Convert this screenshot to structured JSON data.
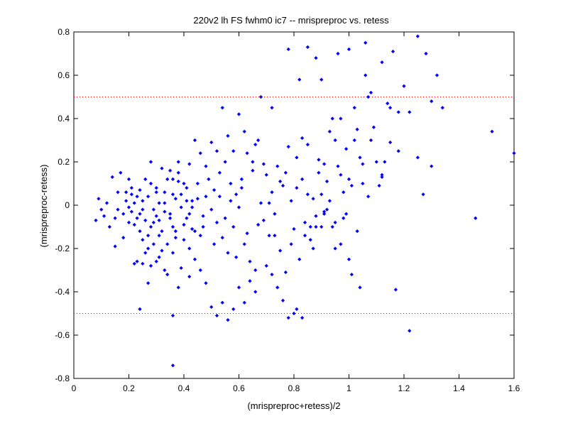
{
  "chart_data": {
    "type": "scatter",
    "title": "220v2 lh FS fwhm0 ic7 -- mrispreproc vs. retess",
    "xlabel": "(mrispreproc+retess)/2",
    "ylabel": "(mrispreproc-retess)",
    "xlim": [
      0,
      1.6
    ],
    "ylim": [
      -0.8,
      0.8
    ],
    "xticks": [
      "0",
      "0.2",
      "0.4",
      "0.6",
      "0.8",
      "1",
      "1.2",
      "1.4",
      "1.6"
    ],
    "yticks": [
      "-0.8",
      "-0.6",
      "-0.4",
      "-0.2",
      "0",
      "0.2",
      "0.4",
      "0.6",
      "0.8"
    ],
    "grid": false,
    "reference_lines": [
      {
        "y": 0.5,
        "style": "dotted",
        "color": "#ff0000"
      },
      {
        "y": -0.5,
        "style": "dotted",
        "color": "#ff0000"
      }
    ],
    "marker_color": "#0000ff",
    "series": [
      {
        "points": [
          [
            0.08,
            -0.07
          ],
          [
            0.09,
            0.03
          ],
          [
            0.1,
            -0.02
          ],
          [
            0.11,
            -0.05
          ],
          [
            0.12,
            0.01
          ],
          [
            0.13,
            -0.1
          ],
          [
            0.14,
            0.13
          ],
          [
            0.15,
            -0.06
          ],
          [
            0.16,
            0.06
          ],
          [
            0.16,
            -0.02
          ],
          [
            0.17,
            0.15
          ],
          [
            0.18,
            -0.04
          ],
          [
            0.19,
            0.02
          ],
          [
            0.2,
            -0.01
          ],
          [
            0.21,
            0.05
          ],
          [
            0.22,
            -0.09
          ],
          [
            0.23,
            0.04
          ],
          [
            0.24,
            -0.12
          ],
          [
            0.15,
            -0.19
          ],
          [
            0.18,
            -0.15
          ],
          [
            0.2,
            -0.08
          ],
          [
            0.19,
            0.06
          ],
          [
            0.22,
            0.01
          ],
          [
            0.21,
            -0.03
          ],
          [
            0.23,
            -0.06
          ],
          [
            0.24,
            0.07
          ],
          [
            0.25,
            -0.02
          ],
          [
            0.26,
            -0.07
          ],
          [
            0.27,
            0.04
          ],
          [
            0.28,
            -0.1
          ],
          [
            0.25,
            -0.16
          ],
          [
            0.27,
            -0.2
          ],
          [
            0.28,
            0.1
          ],
          [
            0.3,
            -0.05
          ],
          [
            0.31,
            0.01
          ],
          [
            0.32,
            -0.12
          ],
          [
            0.29,
            -0.08
          ],
          [
            0.3,
            0.06
          ],
          [
            0.33,
            -0.03
          ],
          [
            0.34,
            0.12
          ],
          [
            0.35,
            -0.06
          ],
          [
            0.36,
            0.05
          ],
          [
            0.37,
            -0.15
          ],
          [
            0.38,
            0.15
          ],
          [
            0.39,
            -0.01
          ],
          [
            0.4,
            -0.09
          ],
          [
            0.41,
            0.08
          ],
          [
            0.42,
            -0.04
          ],
          [
            0.43,
            0.02
          ],
          [
            0.44,
            -0.12
          ],
          [
            0.45,
            0.1
          ],
          [
            0.35,
            0.16
          ],
          [
            0.38,
            0.11
          ],
          [
            0.41,
            0.02
          ],
          [
            0.37,
            0.03
          ],
          [
            0.33,
            0.06
          ],
          [
            0.36,
            -0.1
          ],
          [
            0.34,
            -0.18
          ],
          [
            0.31,
            -0.14
          ],
          [
            0.29,
            -0.18
          ],
          [
            0.26,
            -0.22
          ],
          [
            0.23,
            -0.26
          ],
          [
            0.25,
            -0.27
          ],
          [
            0.28,
            -0.28
          ],
          [
            0.31,
            -0.24
          ],
          [
            0.33,
            -0.3
          ],
          [
            0.36,
            -0.22
          ],
          [
            0.39,
            -0.29
          ],
          [
            0.42,
            -0.2
          ],
          [
            0.4,
            -0.16
          ],
          [
            0.43,
            -0.11
          ],
          [
            0.46,
            -0.14
          ],
          [
            0.47,
            -0.05
          ],
          [
            0.48,
            0.04
          ],
          [
            0.5,
            -0.02
          ],
          [
            0.51,
            0.07
          ],
          [
            0.52,
            -0.08
          ],
          [
            0.53,
            0.15
          ],
          [
            0.54,
            -0.15
          ],
          [
            0.55,
            0.2
          ],
          [
            0.56,
            -0.22
          ],
          [
            0.57,
            0.1
          ],
          [
            0.58,
            -0.1
          ],
          [
            0.59,
            0.05
          ],
          [
            0.6,
            -0.01
          ],
          [
            0.61,
            0.12
          ],
          [
            0.62,
            -0.18
          ],
          [
            0.63,
            0.24
          ],
          [
            0.64,
            -0.26
          ],
          [
            0.65,
            0.2
          ],
          [
            0.66,
            -0.3
          ],
          [
            0.67,
            0.3
          ],
          [
            0.68,
            0.01
          ],
          [
            0.69,
            -0.07
          ],
          [
            0.7,
            0.14
          ],
          [
            0.71,
            -0.14
          ],
          [
            0.72,
            0.06
          ],
          [
            0.73,
            -0.04
          ],
          [
            0.74,
            0.18
          ],
          [
            0.75,
            -0.21
          ],
          [
            0.76,
            0.09
          ],
          [
            0.77,
            -0.31
          ],
          [
            0.78,
            0.27
          ],
          [
            0.79,
            0.02
          ],
          [
            0.8,
            -0.11
          ],
          [
            0.81,
            0.22
          ],
          [
            0.82,
            -0.25
          ],
          [
            0.83,
            0.12
          ],
          [
            0.84,
            -0.08
          ],
          [
            0.85,
            0.28
          ],
          [
            0.86,
            -0.16
          ],
          [
            0.87,
            0.03
          ],
          [
            0.88,
            -0.1
          ],
          [
            0.89,
            0.21
          ],
          [
            0.9,
            0.05
          ],
          [
            0.91,
            -0.03
          ],
          [
            0.92,
            0.11
          ],
          [
            0.93,
            0.34
          ],
          [
            0.94,
            -0.1
          ],
          [
            0.95,
            0.3
          ],
          [
            0.96,
            0.18
          ],
          [
            0.97,
            0.4
          ],
          [
            0.98,
            0.06
          ],
          [
            0.99,
            0.26
          ],
          [
            1.0,
            0.12
          ],
          [
            1.01,
            -0.32
          ],
          [
            1.02,
            0.45
          ],
          [
            1.03,
            0.35
          ],
          [
            1.04,
            0.22
          ],
          [
            1.05,
            0.1
          ],
          [
            1.06,
            0.6
          ],
          [
            1.07,
            0.5
          ],
          [
            1.08,
            0.3
          ],
          [
            1.1,
            0.2
          ],
          [
            1.12,
            0.14
          ],
          [
            1.14,
            0.47
          ],
          [
            1.16,
            0.71
          ],
          [
            1.18,
            0.25
          ],
          [
            1.2,
            0.55
          ],
          [
            1.22,
            0.43
          ],
          [
            1.25,
            0.78
          ],
          [
            1.27,
            0.05
          ],
          [
            1.28,
            0.7
          ],
          [
            1.3,
            0.48
          ],
          [
            1.32,
            0.6
          ],
          [
            1.34,
            0.45
          ],
          [
            1.12,
            0.13
          ],
          [
            1.15,
            0.45
          ],
          [
            1.08,
            0.52
          ],
          [
            1.02,
            0.3
          ],
          [
            1.04,
            -0.38
          ],
          [
            1.0,
            -0.25
          ],
          [
            0.98,
            -0.06
          ],
          [
            0.97,
            -0.18
          ],
          [
            0.95,
            -0.2
          ],
          [
            0.92,
            -0.02
          ],
          [
            0.91,
            -0.04
          ],
          [
            0.9,
            -0.1
          ],
          [
            0.88,
            -0.05
          ],
          [
            0.86,
            -0.1
          ],
          [
            0.84,
            -0.14
          ],
          [
            0.83,
            -0.52
          ],
          [
            0.81,
            -0.48
          ],
          [
            0.8,
            -0.5
          ],
          [
            0.78,
            -0.52
          ],
          [
            0.76,
            -0.44
          ],
          [
            0.74,
            -0.38
          ],
          [
            0.72,
            -0.32
          ],
          [
            0.7,
            -0.28
          ],
          [
            0.66,
            -0.4
          ],
          [
            0.64,
            -0.35
          ],
          [
            0.62,
            -0.45
          ],
          [
            0.6,
            -0.38
          ],
          [
            0.58,
            -0.48
          ],
          [
            0.56,
            -0.53
          ],
          [
            0.54,
            -0.45
          ],
          [
            0.52,
            -0.51
          ],
          [
            0.5,
            -0.47
          ],
          [
            0.48,
            -0.36
          ],
          [
            0.46,
            -0.3
          ],
          [
            0.44,
            -0.25
          ],
          [
            0.42,
            -0.33
          ],
          [
            0.38,
            -0.38
          ],
          [
            0.36,
            -0.51
          ],
          [
            0.34,
            -0.32
          ],
          [
            0.32,
            -0.21
          ],
          [
            0.3,
            -0.26
          ],
          [
            0.27,
            -0.36
          ],
          [
            0.24,
            -0.48
          ],
          [
            0.22,
            -0.27
          ],
          [
            0.36,
            -0.74
          ],
          [
            1.22,
            -0.58
          ],
          [
            1.17,
            -0.39
          ],
          [
            1.46,
            -0.06
          ],
          [
            1.52,
            0.34
          ],
          [
            1.6,
            0.24
          ],
          [
            1.3,
            0.18
          ],
          [
            1.25,
            0.22
          ],
          [
            1.18,
            0.43
          ],
          [
            0.85,
            0.73
          ],
          [
            0.88,
            0.68
          ],
          [
            0.82,
            0.58
          ],
          [
            0.78,
            0.72
          ],
          [
            0.9,
            0.58
          ],
          [
            0.94,
            0.4
          ],
          [
            0.96,
            0.7
          ],
          [
            1.0,
            0.72
          ],
          [
            1.06,
            0.75
          ],
          [
            1.12,
            0.66
          ],
          [
            0.68,
            0.5
          ],
          [
            0.72,
            0.45
          ],
          [
            0.66,
            0.28
          ],
          [
            0.62,
            0.34
          ],
          [
            0.6,
            0.42
          ],
          [
            0.58,
            0.25
          ],
          [
            0.56,
            0.32
          ],
          [
            0.54,
            0.45
          ],
          [
            0.52,
            0.25
          ],
          [
            0.5,
            0.29
          ],
          [
            0.48,
            0.18
          ],
          [
            0.46,
            0.24
          ],
          [
            0.44,
            0.3
          ],
          [
            0.42,
            0.19
          ],
          [
            0.4,
            0.1
          ],
          [
            0.38,
            0.2
          ],
          [
            0.36,
            0.12
          ],
          [
            0.32,
            0.17
          ],
          [
            0.3,
            0.08
          ],
          [
            0.28,
            0.2
          ],
          [
            0.26,
            0.12
          ],
          [
            0.25,
            0.02
          ],
          [
            0.21,
            0.08
          ],
          [
            0.2,
            0.12
          ],
          [
            0.24,
            -0.04
          ],
          [
            0.27,
            -0.14
          ],
          [
            0.29,
            -0.02
          ],
          [
            0.31,
            -0.07
          ],
          [
            0.33,
            0.01
          ],
          [
            0.35,
            -0.04
          ],
          [
            0.37,
            -0.12
          ],
          [
            0.39,
            0.05
          ],
          [
            0.41,
            -0.06
          ],
          [
            0.43,
            -0.01
          ],
          [
            0.45,
            0.03
          ],
          [
            0.47,
            -0.1
          ],
          [
            0.49,
            0.12
          ],
          [
            0.51,
            -0.18
          ],
          [
            0.53,
            0.04
          ],
          [
            0.55,
            -0.06
          ],
          [
            0.57,
            0.02
          ],
          [
            0.59,
            -0.24
          ],
          [
            0.61,
            0.08
          ],
          [
            0.63,
            -0.13
          ],
          [
            0.65,
            0.16
          ],
          [
            0.67,
            -0.09
          ],
          [
            0.69,
            0.19
          ],
          [
            0.71,
            0.01
          ],
          [
            0.73,
            -0.14
          ],
          [
            0.75,
            0.11
          ],
          [
            0.77,
            0.15
          ],
          [
            0.79,
            -0.18
          ],
          [
            0.81,
            0.08
          ],
          [
            0.83,
            0.31
          ],
          [
            0.85,
            0.05
          ],
          [
            0.87,
            -0.2
          ],
          [
            0.89,
            0.15
          ],
          [
            0.91,
            0.19
          ],
          [
            0.93,
            0.02
          ],
          [
            0.95,
            -0.08
          ],
          [
            0.97,
            0.14
          ],
          [
            0.99,
            -0.04
          ],
          [
            1.01,
            0.09
          ],
          [
            1.03,
            -0.12
          ],
          [
            1.05,
            0.19
          ],
          [
            1.07,
            0.04
          ],
          [
            1.09,
            0.36
          ],
          [
            1.11,
            0.09
          ],
          [
            1.13,
            0.2
          ],
          [
            1.15,
            0.29
          ]
        ]
      }
    ]
  }
}
